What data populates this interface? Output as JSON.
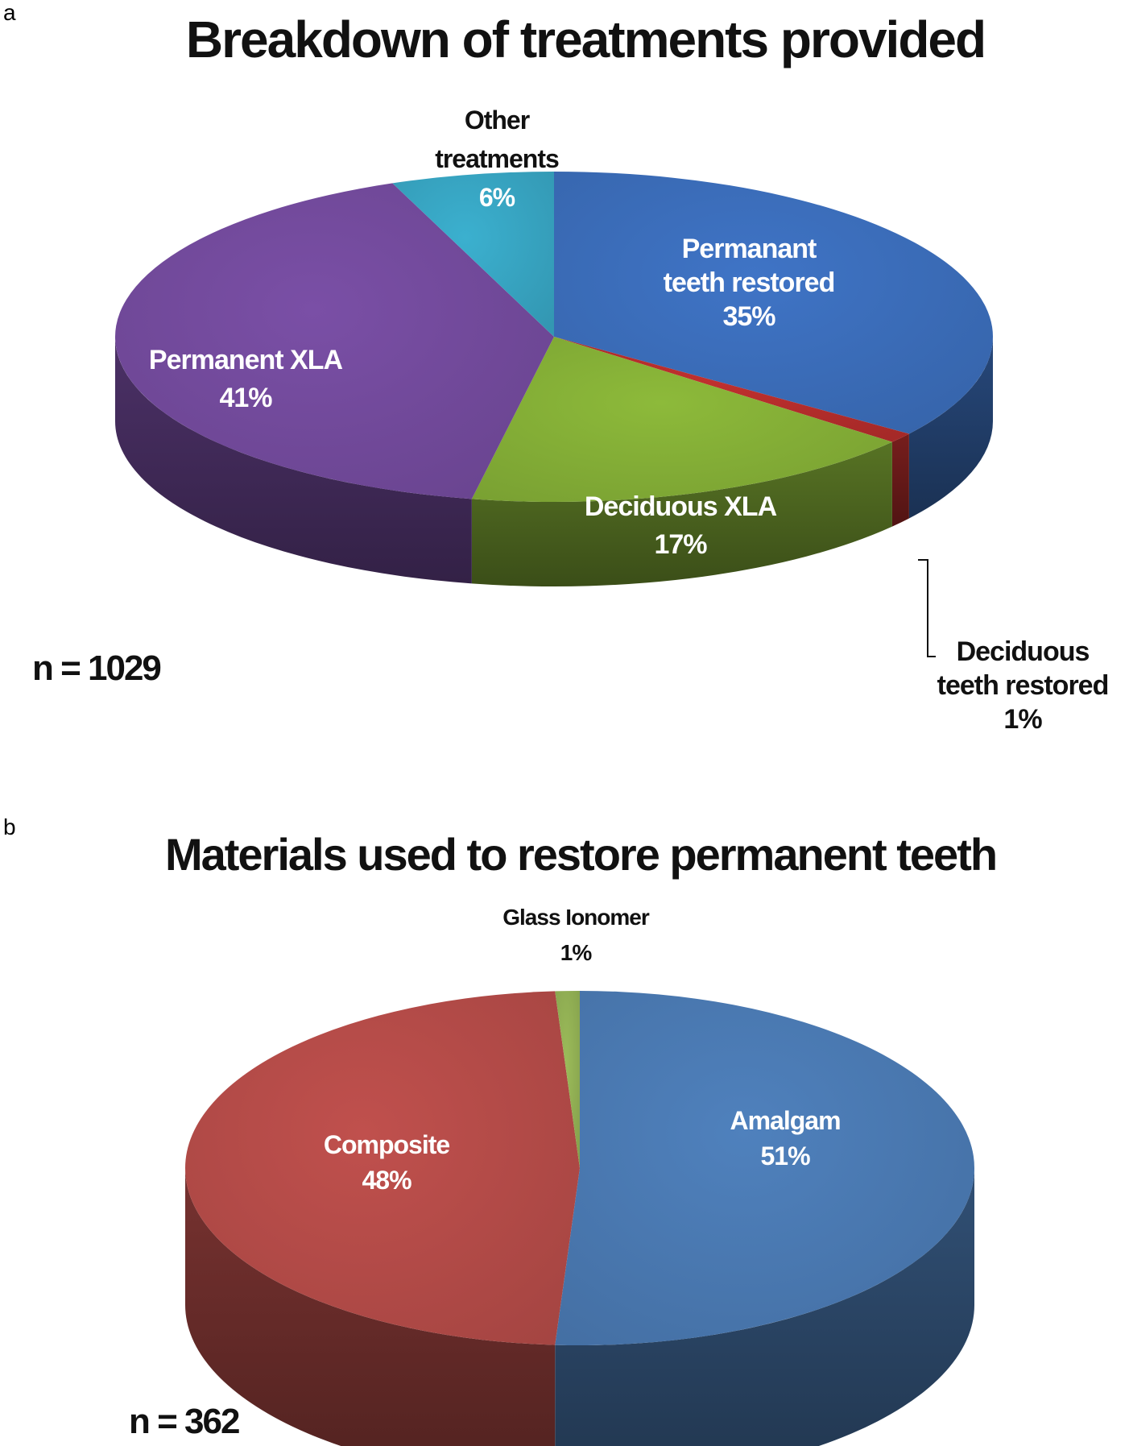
{
  "chart_data": [
    {
      "type": "pie",
      "panel_label": "a",
      "title": "Breakdown of treatments provided",
      "n_label": "n = 1029",
      "slices": [
        {
          "label_lines": [
            "Permanant",
            "teeth restored"
          ],
          "value": 35,
          "value_text": "35%",
          "color": "#3F74C6"
        },
        {
          "label_lines": [
            "Deciduous",
            "teeth restored"
          ],
          "value": 1,
          "value_text": "1%",
          "color": "#C0302E"
        },
        {
          "label_lines": [
            "Deciduous XLA"
          ],
          "value": 17,
          "value_text": "17%",
          "color": "#8DBA3A"
        },
        {
          "label_lines": [
            "Permanent XLA"
          ],
          "value": 41,
          "value_text": "41%",
          "color": "#7A4FA6"
        },
        {
          "label_lines": [
            "Other",
            "treatments"
          ],
          "value": 6,
          "value_text": "6%",
          "color": "#3BB0CF"
        }
      ]
    },
    {
      "type": "pie",
      "panel_label": "b",
      "title": "Materials used to restore permanent teeth",
      "n_label": "n = 362",
      "slices": [
        {
          "label_lines": [
            "Amalgam"
          ],
          "value": 51,
          "value_text": "51%",
          "color": "#4F81BD"
        },
        {
          "label_lines": [
            "Composite"
          ],
          "value": 48,
          "value_text": "48%",
          "color": "#C0504D"
        },
        {
          "label_lines": [
            "Glass Ionomer"
          ],
          "value": 1,
          "value_text": "1%",
          "color": "#9BBB59"
        }
      ]
    }
  ]
}
